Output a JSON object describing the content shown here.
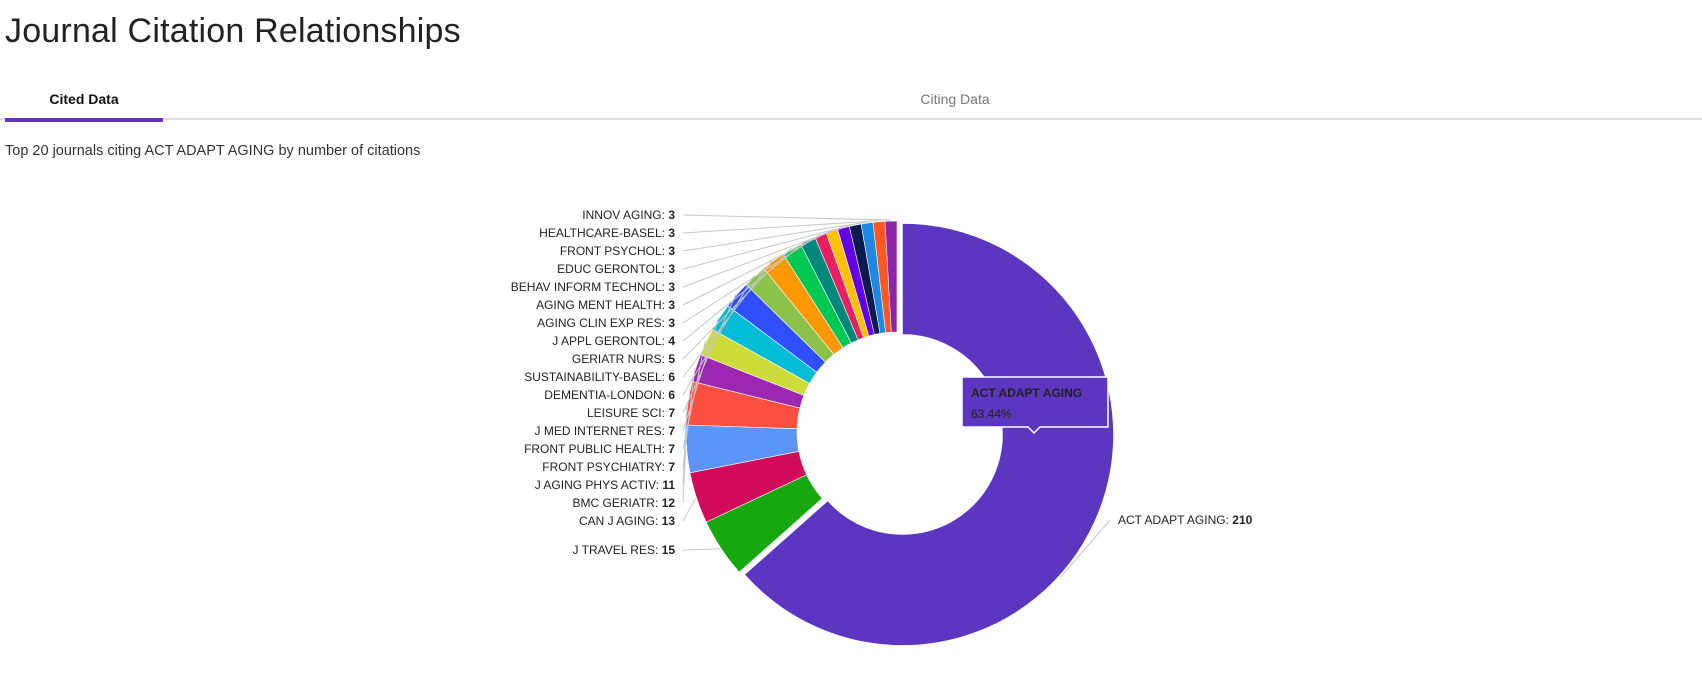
{
  "page": {
    "title": "Journal Citation Relationships",
    "description": "Top 20 journals citing ACT ADAPT AGING by number of citations"
  },
  "tabs": [
    {
      "label": "Cited Data",
      "active": true
    },
    {
      "label": "Citing Data",
      "active": false
    }
  ],
  "tooltip": {
    "name": "ACT ADAPT AGING",
    "value": "63.44%"
  },
  "chart_data": {
    "type": "pie",
    "donut": true,
    "slices": [
      {
        "name": "ACT ADAPT AGING",
        "value": 210,
        "color": "#5c35c0"
      },
      {
        "name": "J TRAVEL RES",
        "value": 15,
        "color": "#17a80f"
      },
      {
        "name": "CAN J AGING",
        "value": 13,
        "color": "#d10a5a"
      },
      {
        "name": "BMC GERIATR",
        "value": 12,
        "color": "#5b95f7"
      },
      {
        "name": "J AGING PHYS ACTIV",
        "value": 11,
        "color": "#fd4e42"
      },
      {
        "name": "FRONT PSYCHIATRY",
        "value": 7,
        "color": "#9c27b0"
      },
      {
        "name": "FRONT PUBLIC HEALTH",
        "value": 7,
        "color": "#cddc39"
      },
      {
        "name": "J MED INTERNET RES",
        "value": 7,
        "color": "#00bcd4"
      },
      {
        "name": "LEISURE SCI",
        "value": 7,
        "color": "#304ffe"
      },
      {
        "name": "DEMENTIA-LONDON",
        "value": 6,
        "color": "#8bc34a"
      },
      {
        "name": "SUSTAINABILITY-BASEL",
        "value": 6,
        "color": "#ff9800"
      },
      {
        "name": "GERIATR NURS",
        "value": 5,
        "color": "#00c853"
      },
      {
        "name": "J APPL GERONTOL",
        "value": 4,
        "color": "#00897b"
      },
      {
        "name": "AGING CLIN EXP RES",
        "value": 3,
        "color": "#e91e63"
      },
      {
        "name": "AGING MENT HEALTH",
        "value": 3,
        "color": "#ffc107"
      },
      {
        "name": "BEHAV INFORM TECHNOL",
        "value": 3,
        "color": "#6200ea"
      },
      {
        "name": "EDUC GERONTOL",
        "value": 3,
        "color": "#0d1b4c"
      },
      {
        "name": "FRONT PSYCHOL",
        "value": 3,
        "color": "#1e88e5"
      },
      {
        "name": "HEALTHCARE-BASEL",
        "value": 3,
        "color": "#ff5722"
      },
      {
        "name": "INNOV AGING",
        "value": 3,
        "color": "#8e24aa"
      }
    ],
    "title": "",
    "legend": "none",
    "data_labels": "outside"
  }
}
